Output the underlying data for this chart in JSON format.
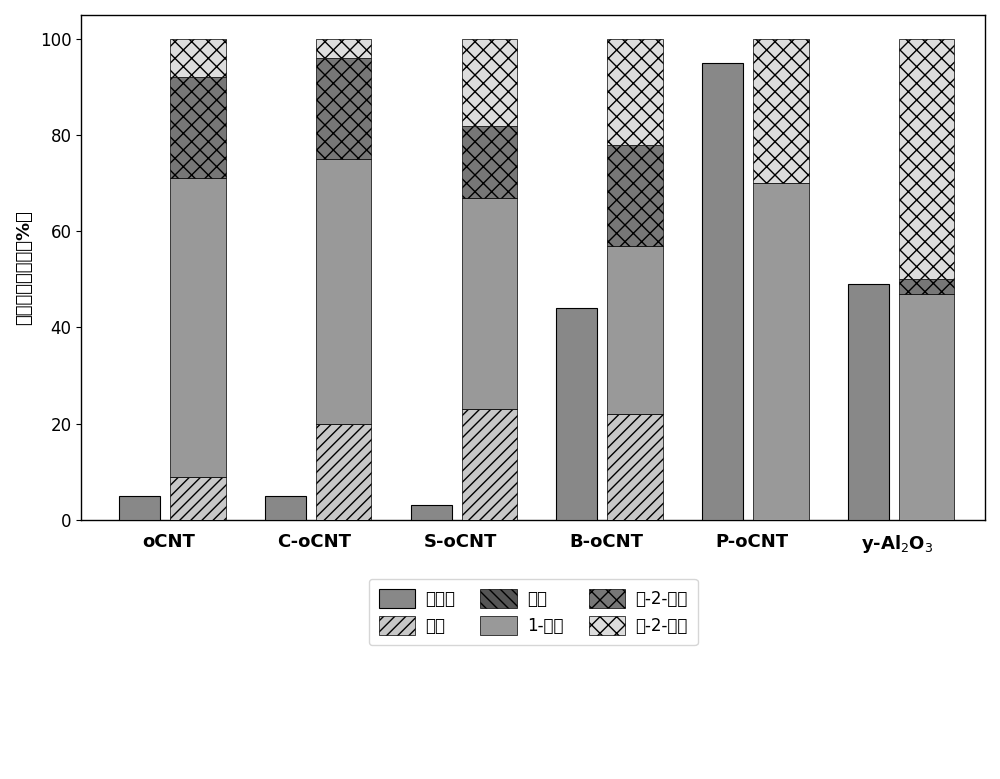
{
  "categories": [
    "oCNT",
    "C-oCNT",
    "S-oCNT",
    "B-oCNT",
    "P-oCNT",
    "y-Al₂O₃"
  ],
  "conversion_rate": [
    5,
    5,
    3,
    44,
    95,
    49
  ],
  "sel_ding_mi": [
    9,
    20,
    23,
    22,
    0,
    0
  ],
  "sel_ding_suan": [
    0,
    0,
    0,
    0,
    0,
    0
  ],
  "sel_1_ding_xi": [
    62,
    55,
    44,
    35,
    70,
    47
  ],
  "sel_fan_2": [
    21,
    21,
    15,
    21,
    0,
    3
  ],
  "sel_shun_2": [
    8,
    4,
    18,
    22,
    30,
    50
  ],
  "conv_bar_width": 0.28,
  "sel_bar_width": 0.38,
  "ylim": [
    0,
    105
  ],
  "yticks": [
    0,
    20,
    40,
    60,
    80,
    100
  ],
  "ylabel": "转化率与选择性（%）",
  "legend_labels": [
    "转化率",
    "丁醇",
    "丁酸",
    "1-丁烯",
    "反-2-丁烯",
    "顺-2-丁烯"
  ],
  "conv_color": "#888888",
  "dm_color": "#aaaaaa",
  "ds_color": "#555555",
  "b1_color": "#888888",
  "f2_color": "#888888",
  "s2_color": "#bbbbbb"
}
